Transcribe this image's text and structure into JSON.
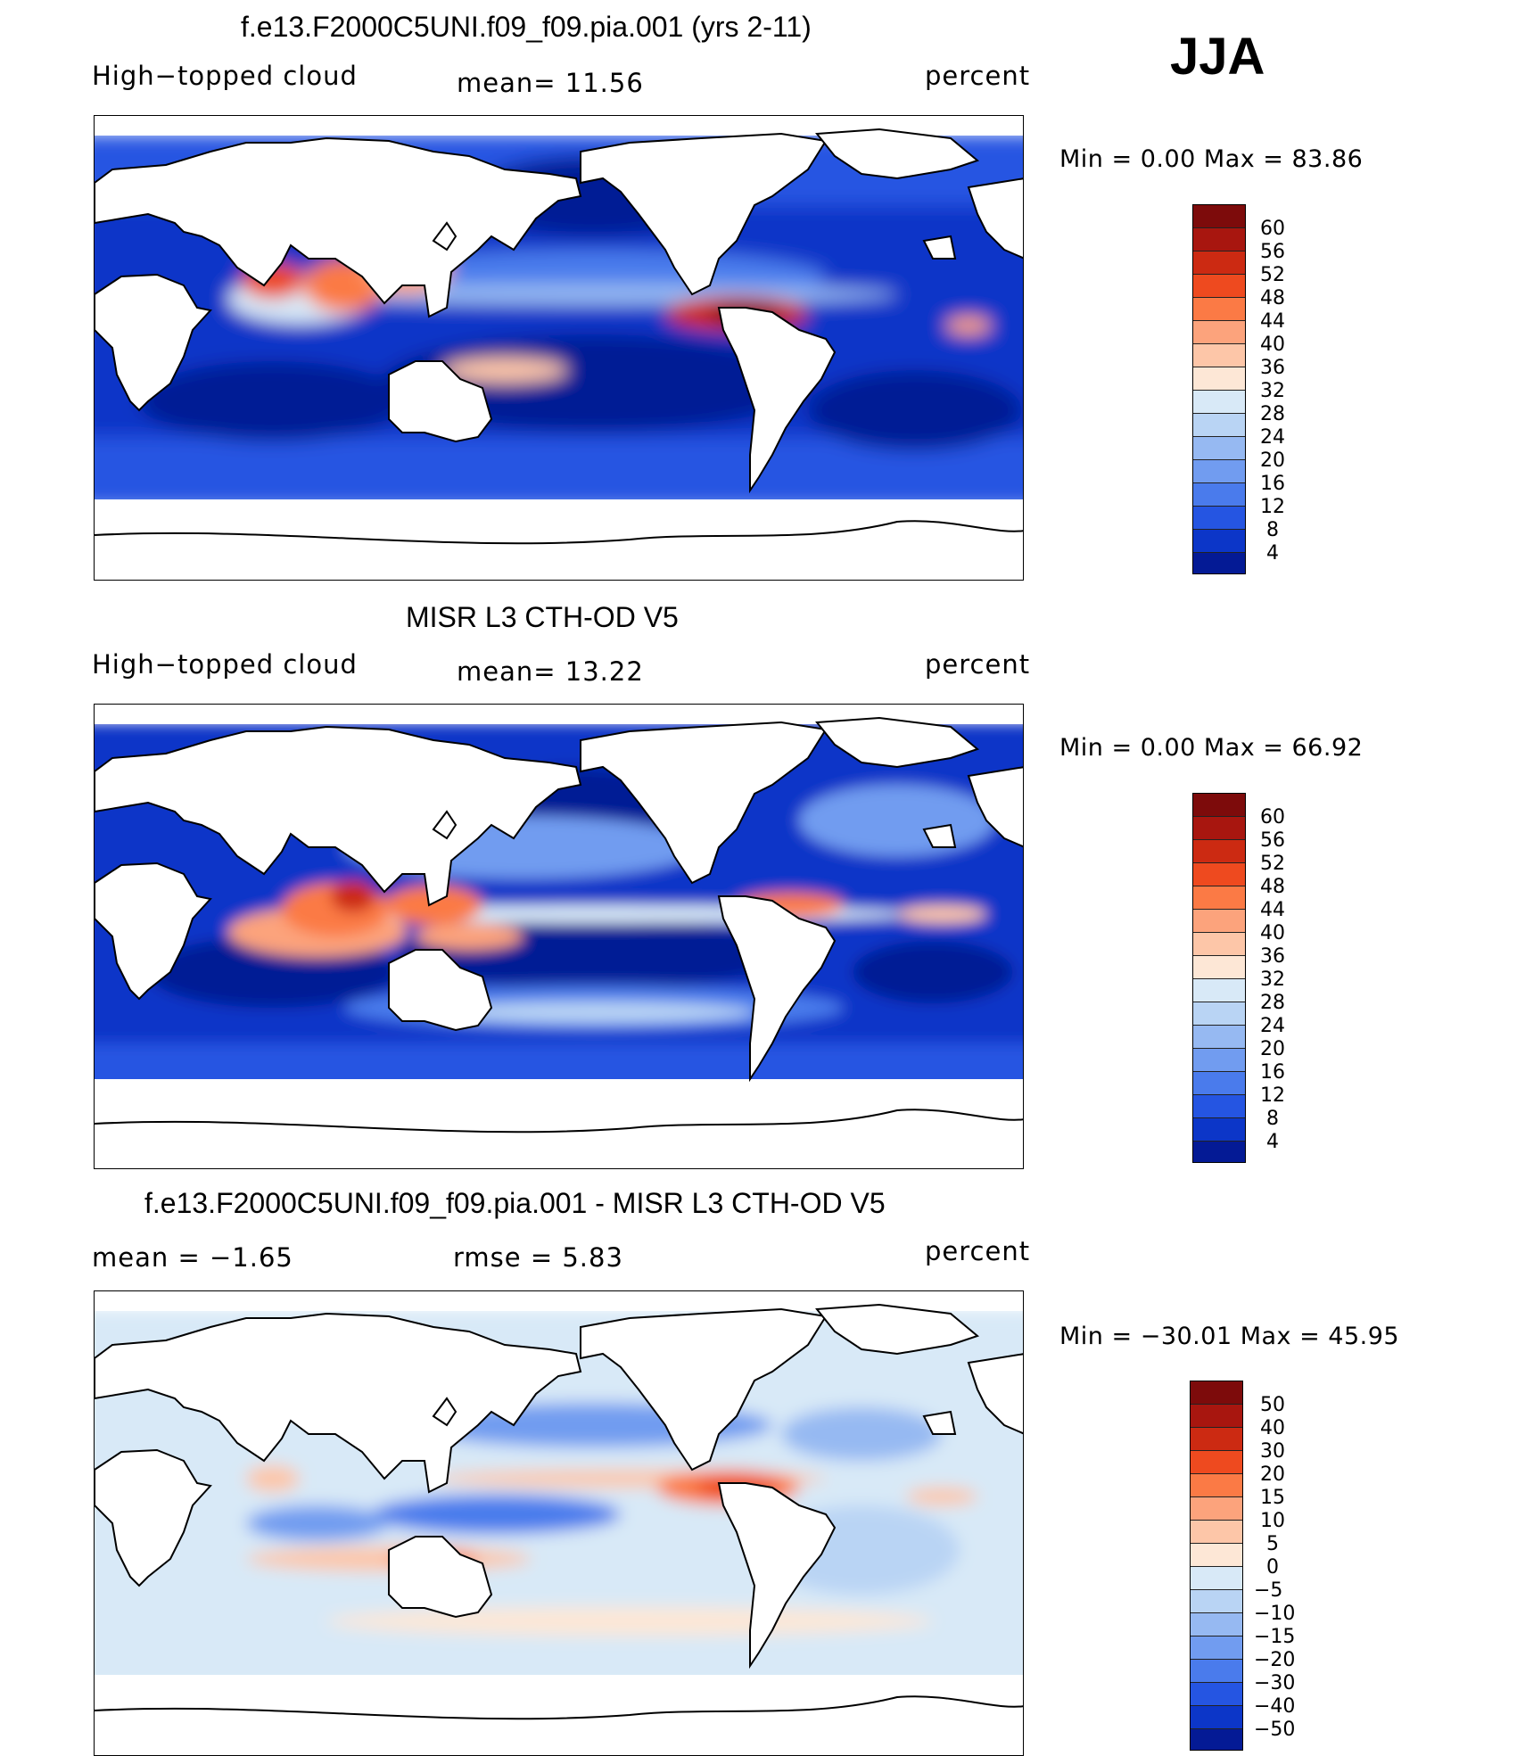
{
  "season": "JJA",
  "panels": [
    {
      "title": "f.e13.F2000C5UNI.f09_f09.pia.001 (yrs 2-11)",
      "left": "High−topped cloud",
      "center": "mean=   11.56",
      "right": "percent",
      "minmax": "Min  =     0.00  Max  =    83.86",
      "colorbar_labels": [
        "60",
        "56",
        "52",
        "48",
        "44",
        "40",
        "36",
        "32",
        "28",
        "24",
        "20",
        "16",
        "12",
        "8",
        "4"
      ],
      "colorbar_colors": [
        "#7d0b0b",
        "#a8160f",
        "#cc2a12",
        "#ee4a1f",
        "#fb7a45",
        "#fca37c",
        "#fdc6a8",
        "#fde7d6",
        "#d8e9f7",
        "#b9d4f4",
        "#96b9f2",
        "#719cf0",
        "#4a7bec",
        "#2555e2",
        "#0c36c8",
        "#041a95"
      ]
    },
    {
      "title": "MISR L3 CTH-OD V5",
      "left": "High−topped cloud",
      "center": "mean=   13.22",
      "right": "percent",
      "minmax": "Min  =     0.00  Max  =    66.92",
      "colorbar_labels": [
        "60",
        "56",
        "52",
        "48",
        "44",
        "40",
        "36",
        "32",
        "28",
        "24",
        "20",
        "16",
        "12",
        "8",
        "4"
      ],
      "colorbar_colors": [
        "#7d0b0b",
        "#a8160f",
        "#cc2a12",
        "#ee4a1f",
        "#fb7a45",
        "#fca37c",
        "#fdc6a8",
        "#fde7d6",
        "#d8e9f7",
        "#b9d4f4",
        "#96b9f2",
        "#719cf0",
        "#4a7bec",
        "#2555e2",
        "#0c36c8",
        "#041a95"
      ]
    },
    {
      "title": "f.e13.F2000C5UNI.f09_f09.pia.001 - MISR L3 CTH-OD V5",
      "left": "mean  =    −1.65",
      "center": "rmse  =     5.83",
      "right": "percent",
      "minmax": "Min  = −30.01  Max  =    45.95",
      "colorbar_labels": [
        "50",
        "40",
        "30",
        "20",
        "15",
        "10",
        "5",
        "0",
        "−5",
        "−10",
        "−15",
        "−20",
        "−30",
        "−40",
        "−50"
      ],
      "colorbar_colors": [
        "#7d0b0b",
        "#a8160f",
        "#cc2a12",
        "#ee4a1f",
        "#fb7a45",
        "#fca37c",
        "#fdc6a8",
        "#fde7d6",
        "#d8e9f7",
        "#b9d4f4",
        "#96b9f2",
        "#719cf0",
        "#4a7bec",
        "#2555e2",
        "#0c36c8",
        "#041a95"
      ]
    }
  ]
}
